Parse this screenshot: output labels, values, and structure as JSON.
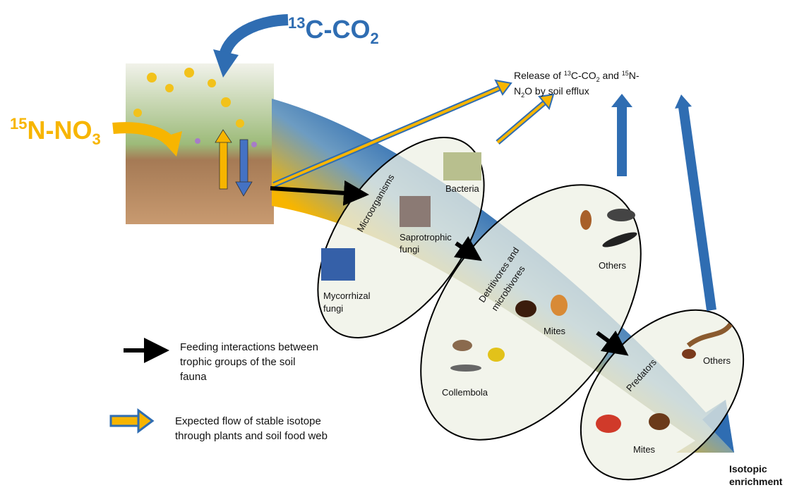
{
  "co2_label": {
    "parts": [
      "13",
      "C-CO",
      "2"
    ]
  },
  "no3_label": {
    "parts": [
      "15",
      "N-NO",
      "3"
    ]
  },
  "efflux_label": {
    "lines": [
      [
        "Release of ",
        "13",
        "C-CO",
        "2",
        " and ",
        "15",
        "N-"
      ],
      [
        "N",
        "2",
        "O by soil efflux"
      ]
    ]
  },
  "groups": {
    "microorganisms": {
      "title": "Microorganisms",
      "members": [
        [
          "Bacteria"
        ],
        [
          "Saprotrophic",
          "fungi"
        ],
        [
          "Mycorrhizal",
          "fungi"
        ]
      ]
    },
    "detritivores": {
      "title": [
        "Detritivores and",
        "microbivores"
      ],
      "members": [
        [
          "Others"
        ],
        [
          "Mites"
        ],
        [
          "Collembola"
        ]
      ]
    },
    "predators": {
      "title": "Predators",
      "members": [
        [
          "Others"
        ],
        [
          "Mites"
        ]
      ]
    }
  },
  "enrichment_label": [
    "Isotopic",
    "enrichment"
  ],
  "legend": {
    "items": [
      {
        "lines": [
          "Feeding interactions between",
          "trophic groups of the soil",
          "fauna"
        ]
      },
      {
        "lines": [
          "Expected flow of stable isotope",
          "through plants and soil food web"
        ]
      }
    ]
  }
}
